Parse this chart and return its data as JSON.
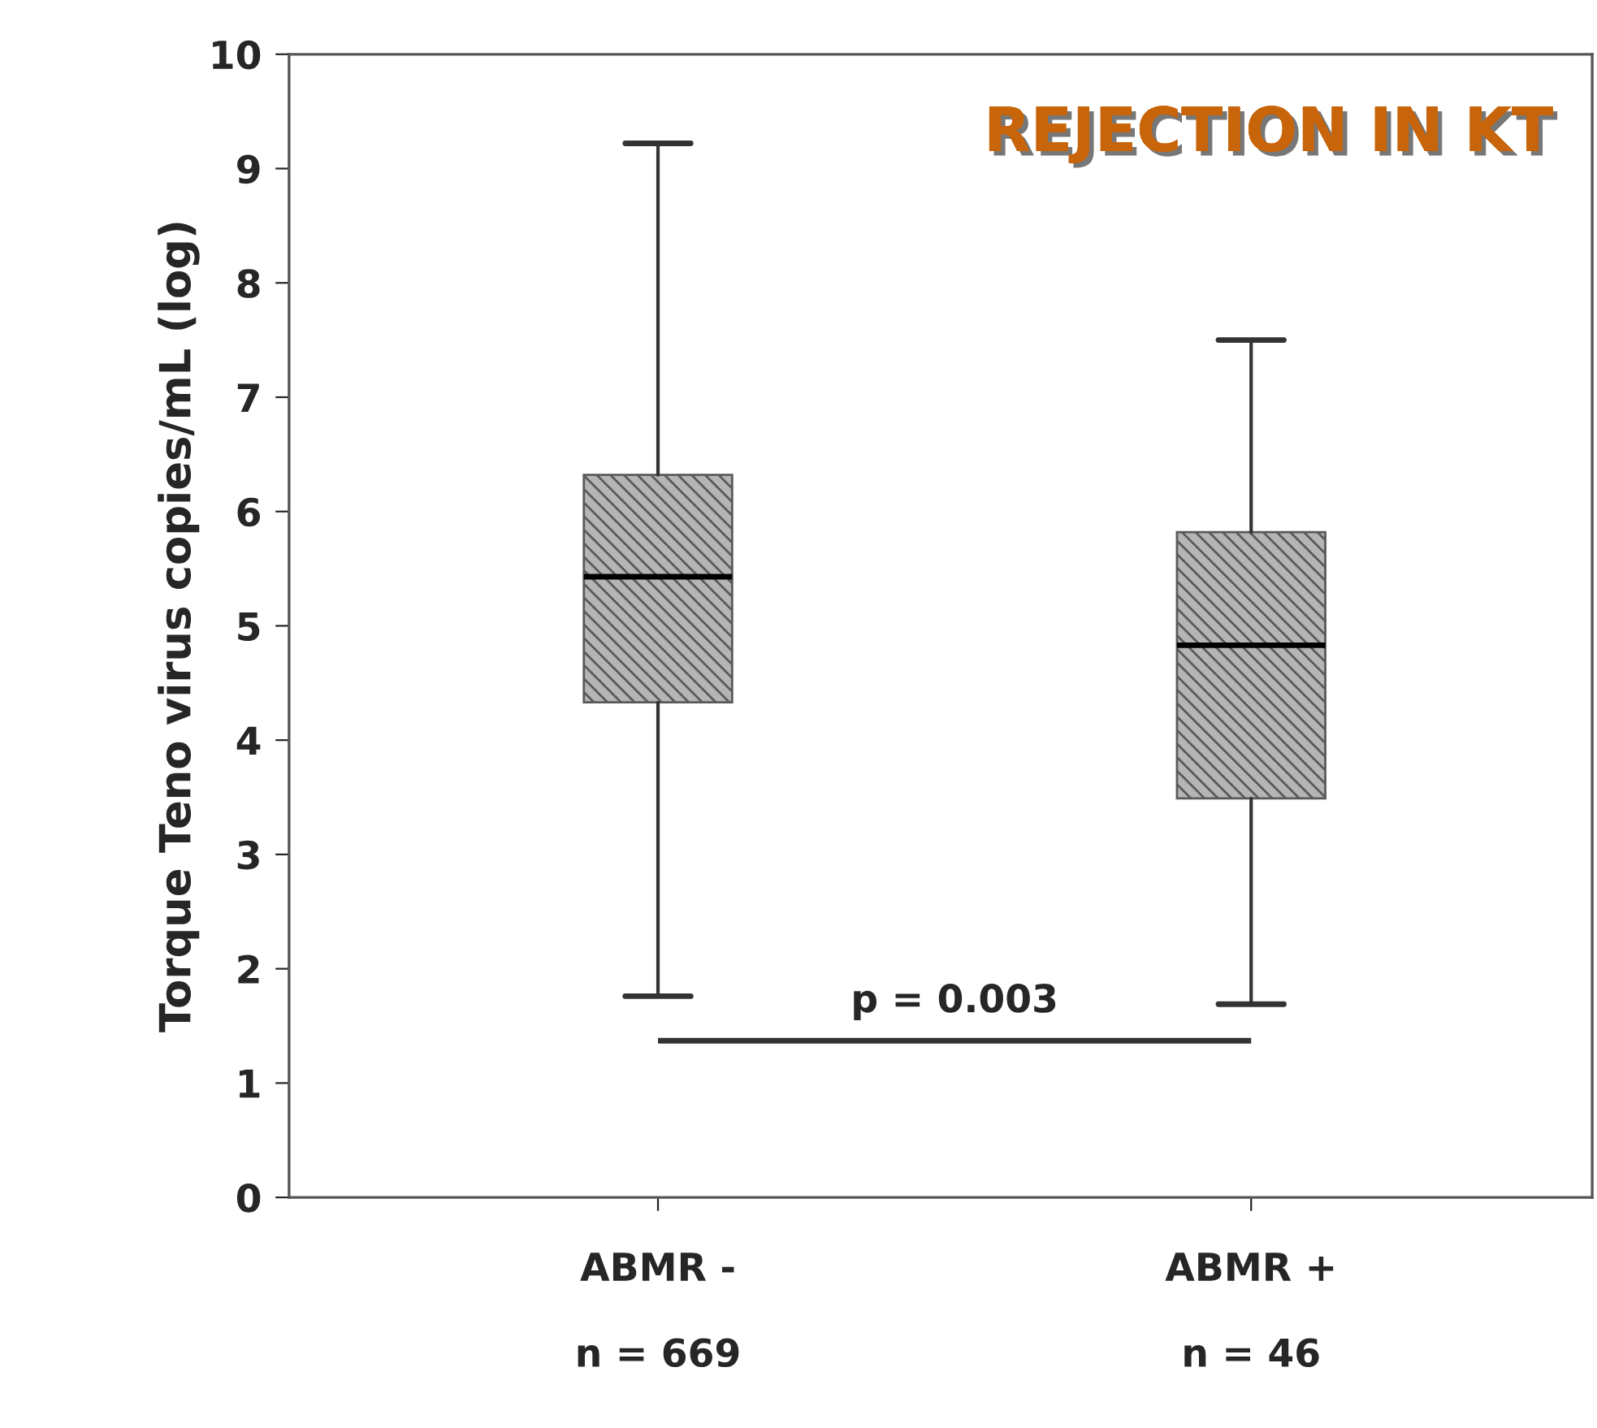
{
  "chart_data": {
    "type": "box",
    "title": "REJECTION IN KT",
    "ylabel": "Torque Teno virus copies/mL (log)",
    "categories": [
      "ABMR -\n\nn = 669",
      "ABMR +\n\nn = 46"
    ],
    "boxes": [
      {
        "low": 1.76,
        "q1": 4.33,
        "median": 5.43,
        "q3": 6.32,
        "high": 9.22
      },
      {
        "low": 1.69,
        "q1": 3.49,
        "median": 4.83,
        "q3": 5.82,
        "high": 7.5
      }
    ],
    "color": "#5a5a5a",
    "ylim": [
      0,
      10
    ],
    "yticks": [
      0,
      1,
      2,
      3,
      4,
      5,
      6,
      7,
      8,
      9,
      10
    ],
    "grid": false,
    "annotations": [
      "p = 0.003"
    ]
  }
}
